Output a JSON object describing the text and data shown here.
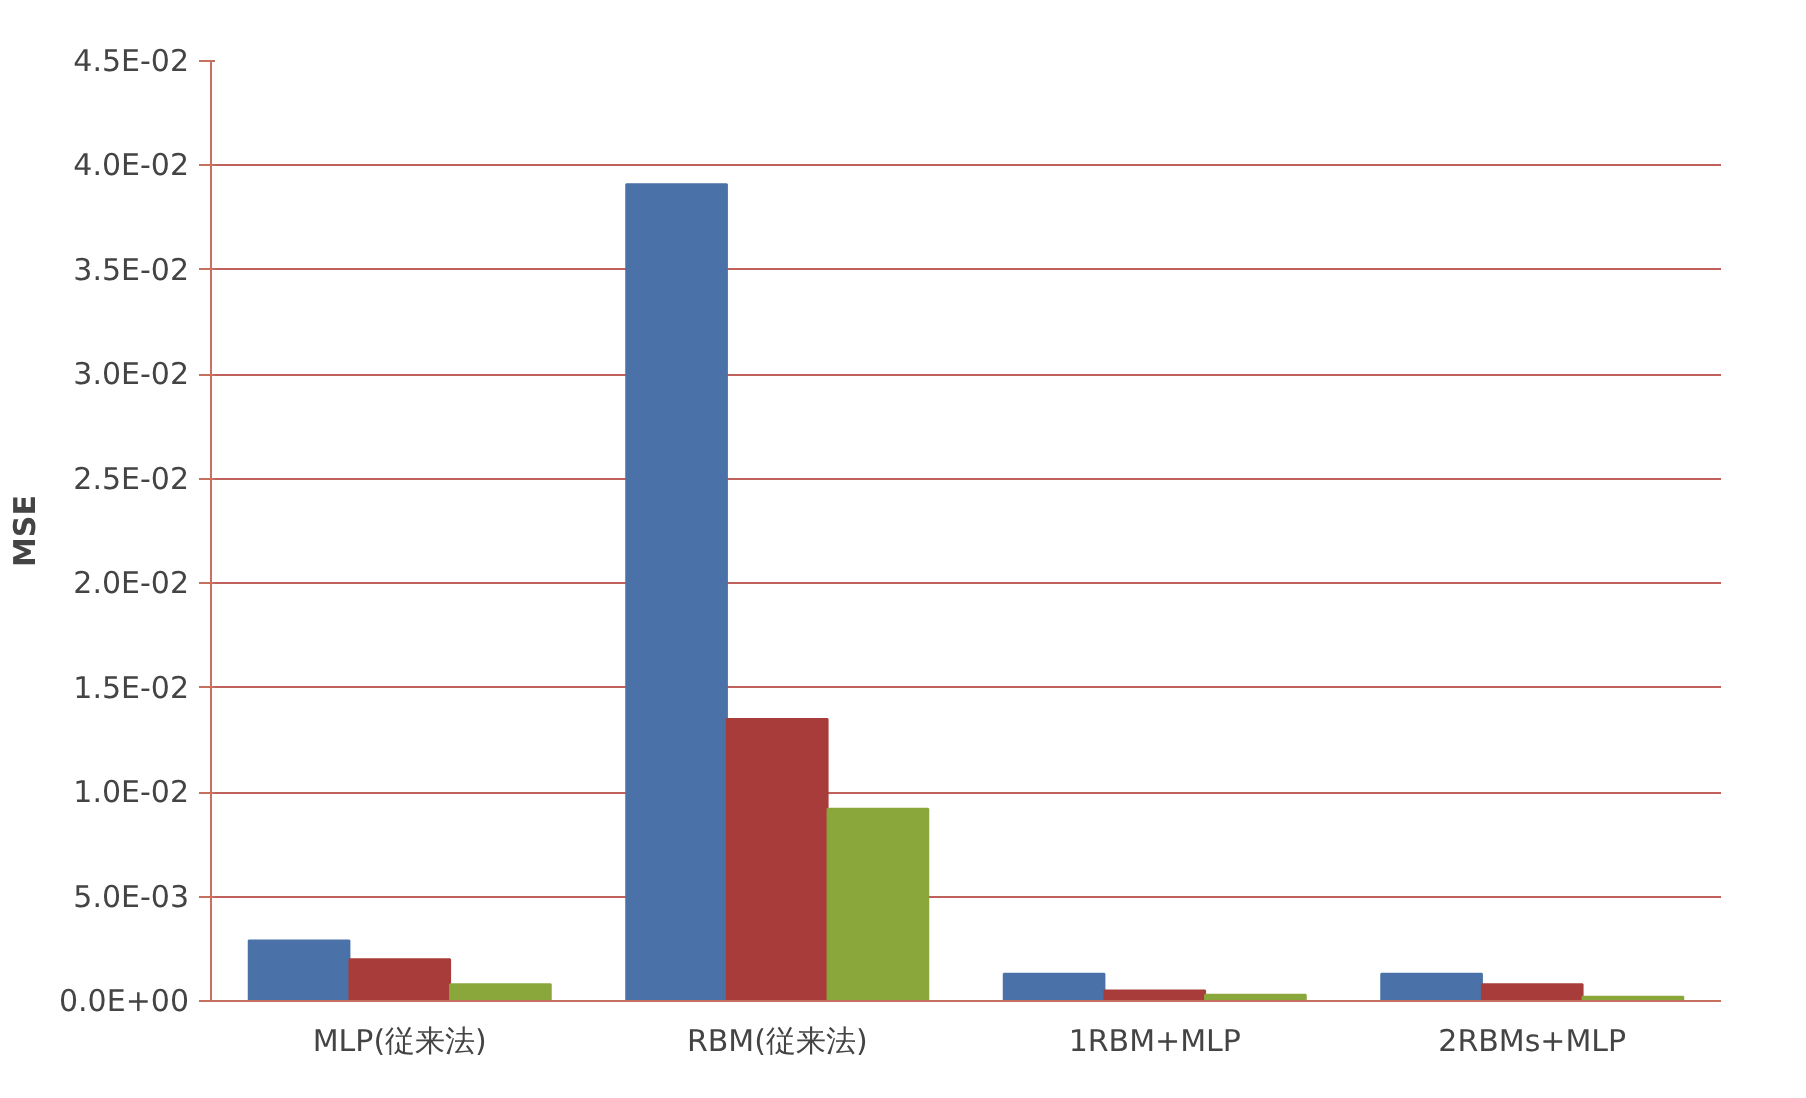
{
  "chart_data": {
    "type": "bar",
    "ylabel": "MSE",
    "categories": [
      "MLP(従来法)",
      "RBM(従来法)",
      "1RBM+MLP",
      "2RBMs+MLP"
    ],
    "series": [
      {
        "color": "#4a72a8",
        "values": [
          0.0029,
          0.0391,
          0.0013,
          0.0013
        ]
      },
      {
        "color": "#a83c3a",
        "values": [
          0.002,
          0.0135,
          0.0005,
          0.0008
        ]
      },
      {
        "color": "#8aa73c",
        "values": [
          0.0008,
          0.0092,
          0.0003,
          0.0002
        ]
      }
    ],
    "ylim": [
      0,
      0.045
    ],
    "yticks": [
      {
        "value": 0,
        "label": "0.0E+00"
      },
      {
        "value": 0.005,
        "label": "5.0E-03"
      },
      {
        "value": 0.01,
        "label": "1.0E-02"
      },
      {
        "value": 0.015,
        "label": "1.5E-02"
      },
      {
        "value": 0.02,
        "label": "2.0E-02"
      },
      {
        "value": 0.025,
        "label": "2.5E-02"
      },
      {
        "value": 0.03,
        "label": "3.0E-02"
      },
      {
        "value": 0.035,
        "label": "3.5E-02"
      },
      {
        "value": 0.04,
        "label": "4.0E-02"
      },
      {
        "value": 0.045,
        "label": "4.5E-02"
      }
    ],
    "grid": "y"
  }
}
